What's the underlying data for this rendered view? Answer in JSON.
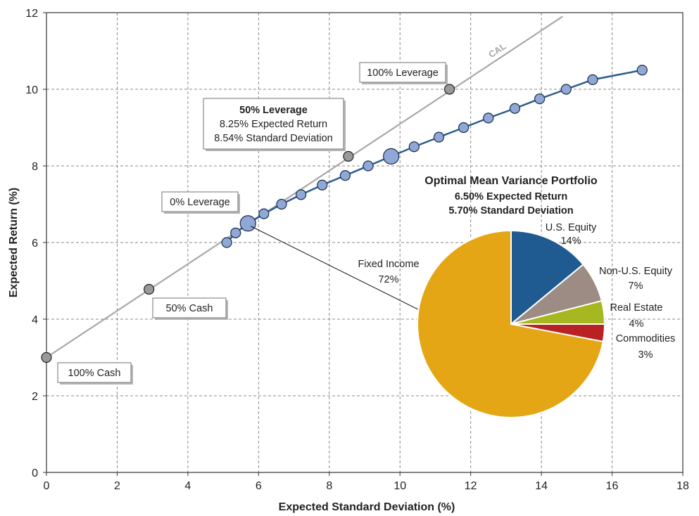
{
  "chart_data": {
    "type": "scatter",
    "xlabel": "Expected Standard Deviation (%)",
    "ylabel": "Expected Return (%)",
    "xlim": [
      0,
      18
    ],
    "ylim": [
      0,
      12
    ],
    "x_ticks": [
      "0",
      "2",
      "4",
      "6",
      "8",
      "10",
      "12",
      "14",
      "16",
      "18"
    ],
    "y_ticks": [
      "0",
      "2",
      "4",
      "6",
      "8",
      "10",
      "12"
    ],
    "grid": true,
    "cal": {
      "name": "CAL",
      "start": {
        "x": 0,
        "y": 3.0
      },
      "end": {
        "x": 14.6,
        "y": 11.9
      },
      "color": "#a8a8a8"
    },
    "cal_points": [
      {
        "x": 0,
        "y": 3.0
      },
      {
        "x": 2.9,
        "y": 4.78
      },
      {
        "x": 8.54,
        "y": 8.25
      },
      {
        "x": 11.4,
        "y": 10.0
      }
    ],
    "frontier": {
      "color": "#2a5c8e",
      "points": [
        {
          "x": 5.1,
          "y": 6.0
        },
        {
          "x": 5.35,
          "y": 6.25
        },
        {
          "x": 5.7,
          "y": 6.5,
          "large": true
        },
        {
          "x": 6.15,
          "y": 6.75
        },
        {
          "x": 6.65,
          "y": 7.0
        },
        {
          "x": 7.2,
          "y": 7.25
        },
        {
          "x": 7.8,
          "y": 7.5
        },
        {
          "x": 8.45,
          "y": 7.75
        },
        {
          "x": 9.1,
          "y": 8.0
        },
        {
          "x": 9.75,
          "y": 8.25,
          "large": true
        },
        {
          "x": 10.4,
          "y": 8.5
        },
        {
          "x": 11.1,
          "y": 8.75
        },
        {
          "x": 11.8,
          "y": 9.0
        },
        {
          "x": 12.5,
          "y": 9.25
        },
        {
          "x": 13.25,
          "y": 9.5
        },
        {
          "x": 13.95,
          "y": 9.75
        },
        {
          "x": 14.7,
          "y": 10.0
        },
        {
          "x": 15.45,
          "y": 10.25
        },
        {
          "x": 16.85,
          "y": 10.5
        }
      ]
    },
    "annotations": [
      {
        "lines": [
          "100% Leverage"
        ]
      },
      {
        "lines": [
          "50% Leverage",
          "8.25% Expected Return",
          "8.54% Standard Deviation"
        ],
        "bold_first": true
      },
      {
        "lines": [
          "0% Leverage"
        ]
      },
      {
        "lines": [
          "50% Cash"
        ]
      },
      {
        "lines": [
          "100% Cash"
        ]
      }
    ],
    "pie": {
      "title": "Optimal Mean Variance Portfolio",
      "subtitle_lines": [
        "6.50% Expected Return",
        "5.70% Standard Deviation"
      ],
      "slices": [
        {
          "name": "U.S. Equity",
          "label": "14%",
          "value": 14,
          "color": "#1f5a91"
        },
        {
          "name": "Non-U.S. Equity",
          "label": "7%",
          "value": 7,
          "color": "#9c8c84"
        },
        {
          "name": "Real Estate",
          "label": "4%",
          "value": 4,
          "color": "#a6b81f"
        },
        {
          "name": "Commodities",
          "label": "3%",
          "value": 3,
          "color": "#b82222"
        },
        {
          "name": "Fixed Income",
          "label": "72%",
          "value": 72,
          "color": "#e4a614"
        }
      ]
    }
  }
}
